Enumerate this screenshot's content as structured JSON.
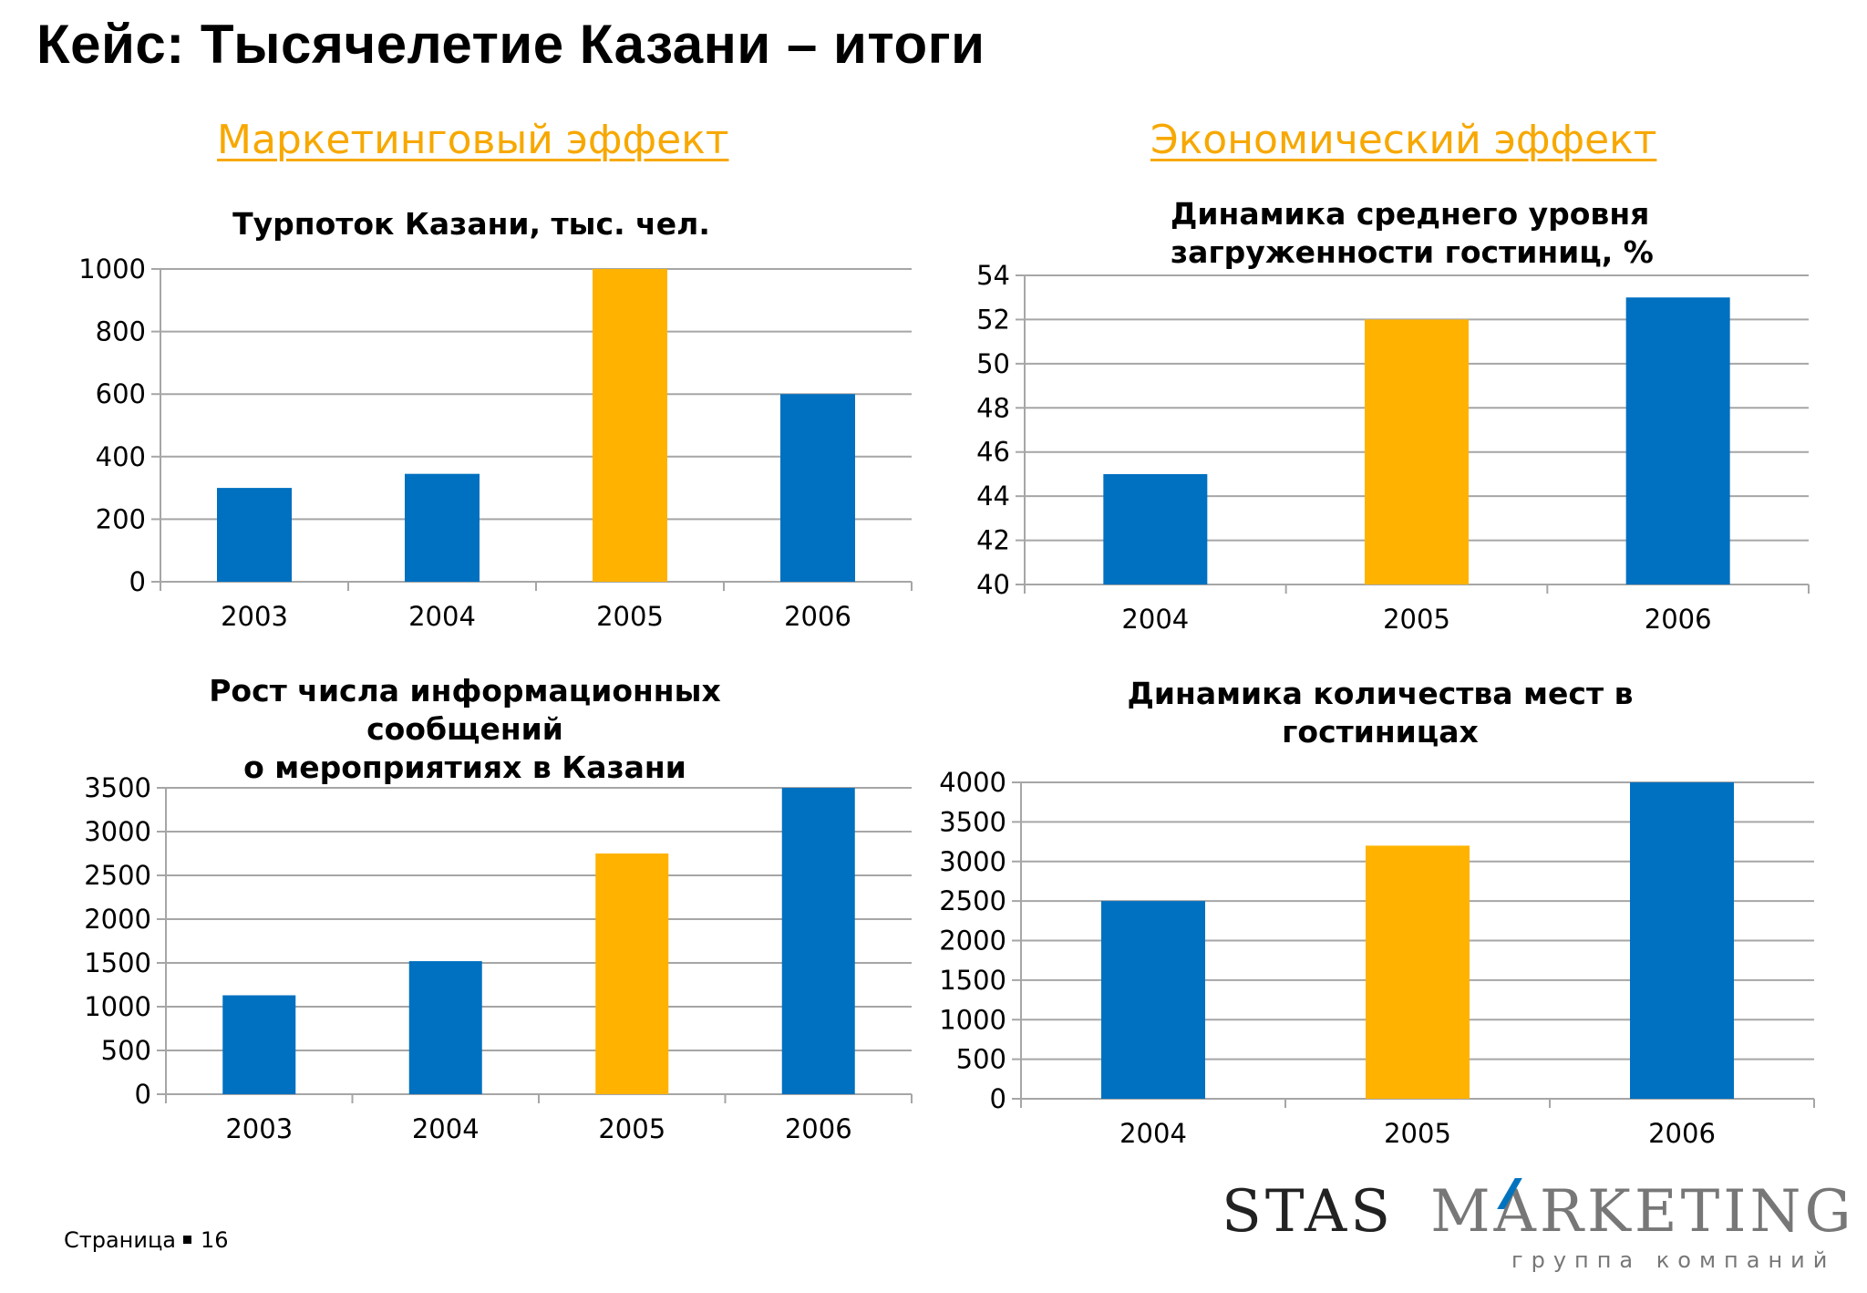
{
  "slide": {
    "title": "Кейс: Тысячелетие Казани – итоги",
    "section_left": "Маркетинговый эффект",
    "section_right": "Экономический эффект",
    "footer_label": "Страница",
    "page_number": "16"
  },
  "logo": {
    "text": "STAS MARKETING",
    "subtitle": "группа компаний"
  },
  "colors": {
    "primary_bar": "#0070c0",
    "highlight_bar": "#ffb300",
    "gridline": "#a6a6a6",
    "section_heading": "#f7a800"
  },
  "chart_data": [
    {
      "type": "bar",
      "title": "Турпоток Казани, тыс. чел.",
      "categories": [
        "2003",
        "2004",
        "2005",
        "2006"
      ],
      "values": [
        300,
        345,
        1000,
        600
      ],
      "highlight_index": 2,
      "ylim": [
        0,
        1000
      ],
      "yticks": [
        0,
        200,
        400,
        600,
        800,
        1000
      ],
      "grid": true
    },
    {
      "type": "bar",
      "title": "Динамика среднего уровня\nзагруженности гостиниц, %",
      "categories": [
        "2004",
        "2005",
        "2006"
      ],
      "values": [
        45,
        52,
        53
      ],
      "highlight_index": 1,
      "ylim": [
        40,
        54
      ],
      "yticks": [
        40,
        42,
        44,
        46,
        48,
        50,
        52,
        54
      ],
      "grid": true
    },
    {
      "type": "bar",
      "title": "Рост числа информационных сообщений\nо мероприятиях в Казани",
      "categories": [
        "2003",
        "2004",
        "2005",
        "2006"
      ],
      "values": [
        1130,
        1520,
        2750,
        3500
      ],
      "highlight_index": 2,
      "ylim": [
        0,
        3500
      ],
      "yticks": [
        0,
        500,
        1000,
        1500,
        2000,
        2500,
        3000,
        3500
      ],
      "grid": true
    },
    {
      "type": "bar",
      "title": "Динамика количества мест в гостиницах",
      "categories": [
        "2004",
        "2005",
        "2006"
      ],
      "values": [
        2500,
        3200,
        4000
      ],
      "highlight_index": 1,
      "ylim": [
        0,
        4000
      ],
      "yticks": [
        0,
        500,
        1000,
        1500,
        2000,
        2500,
        3000,
        3500,
        4000
      ],
      "grid": true
    }
  ]
}
